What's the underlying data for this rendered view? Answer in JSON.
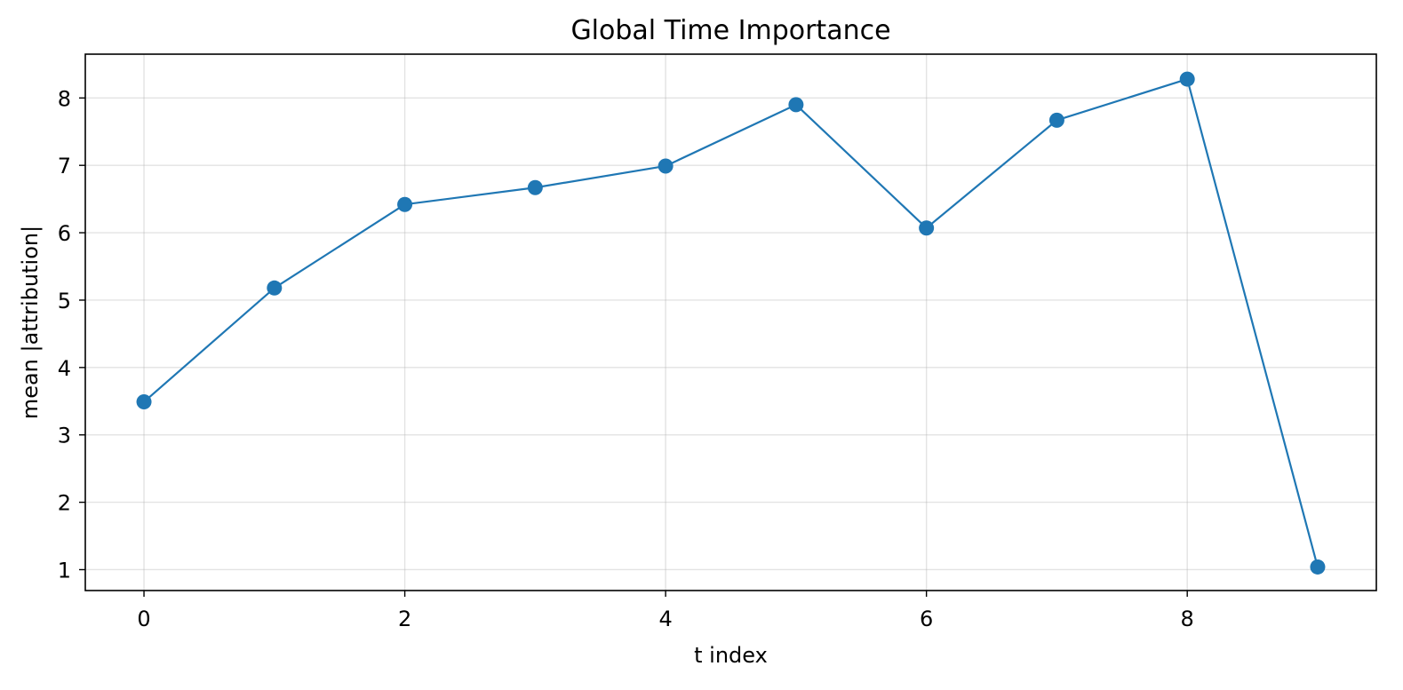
{
  "chart_data": {
    "type": "line",
    "title": "Global Time Importance",
    "xlabel": "t index",
    "ylabel": "mean |attribution|",
    "x": [
      0,
      1,
      2,
      3,
      4,
      5,
      6,
      7,
      8,
      9
    ],
    "series": [
      {
        "values": [
          3.49,
          5.18,
          6.42,
          6.67,
          6.99,
          7.9,
          6.07,
          7.67,
          8.28,
          1.04
        ],
        "color": "#1f77b4",
        "marker": "circle"
      }
    ],
    "xlim": [
      -0.45,
      9.45
    ],
    "ylim": [
      0.69,
      8.65
    ],
    "xticks": [
      0,
      2,
      4,
      6,
      8
    ],
    "yticks": [
      1,
      2,
      3,
      4,
      5,
      6,
      7,
      8
    ],
    "grid": true
  }
}
